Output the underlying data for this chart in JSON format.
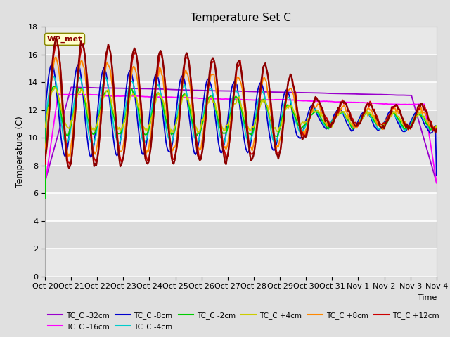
{
  "title": "Temperature Set C",
  "xlabel": "Time",
  "ylabel": "Temperature (C)",
  "ylim": [
    0,
    18
  ],
  "yticks": [
    0,
    2,
    4,
    6,
    8,
    10,
    12,
    14,
    16,
    18
  ],
  "x_labels": [
    "Oct 20",
    "Oct 21",
    "Oct 22",
    "Oct 23",
    "Oct 24",
    "Oct 25",
    "Oct 26",
    "Oct 27",
    "Oct 28",
    "Oct 29",
    "Oct 30",
    "Oct 31",
    "Nov 1",
    "Nov 2",
    "Nov 3",
    "Nov 4"
  ],
  "wp_met_label": "WP_met",
  "wp_met_color": "#8B0000",
  "wp_met_bg": "#FFFFCC",
  "series_colors": {
    "TC_C -32cm": "#9900CC",
    "TC_C -16cm": "#FF00FF",
    "TC_C -8cm": "#0000CC",
    "TC_C -4cm": "#00CCCC",
    "TC_C -2cm": "#00CC00",
    "TC_C +4cm": "#CCCC00",
    "TC_C +8cm": "#FF8800",
    "TC_C +12cm": "#CC0000"
  },
  "band_colors": [
    "#E8E8E8",
    "#D8D8D8"
  ],
  "fig_bg": "#E0E0E0"
}
